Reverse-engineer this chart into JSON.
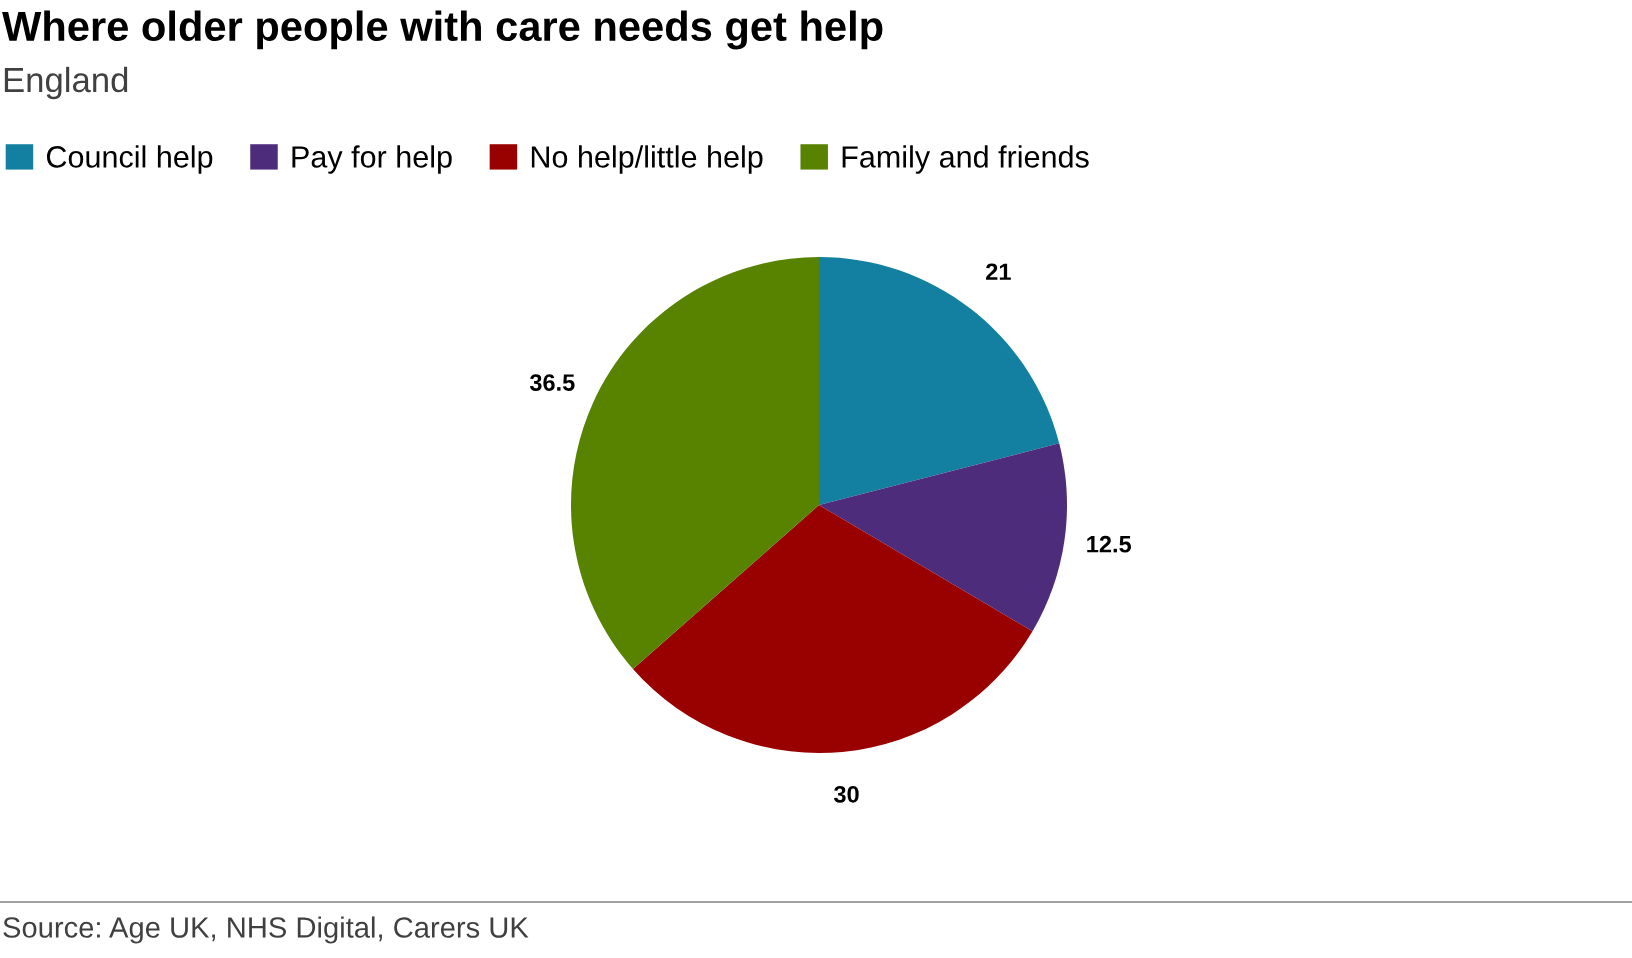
{
  "chart_data": {
    "type": "pie",
    "title": "Where older people with care needs get help",
    "subtitle": "England",
    "categories": [
      "Council help",
      "Pay for help",
      "No help/little help",
      "Family and friends"
    ],
    "values": [
      21,
      12.5,
      30,
      36.5
    ],
    "colors": [
      "#1380a1",
      "#4e2c7c",
      "#990000",
      "#588300"
    ],
    "data_labels": true,
    "legend": "top left",
    "annotations": [
      "Source: Age UK, NHS Digital, Carers UK"
    ]
  }
}
